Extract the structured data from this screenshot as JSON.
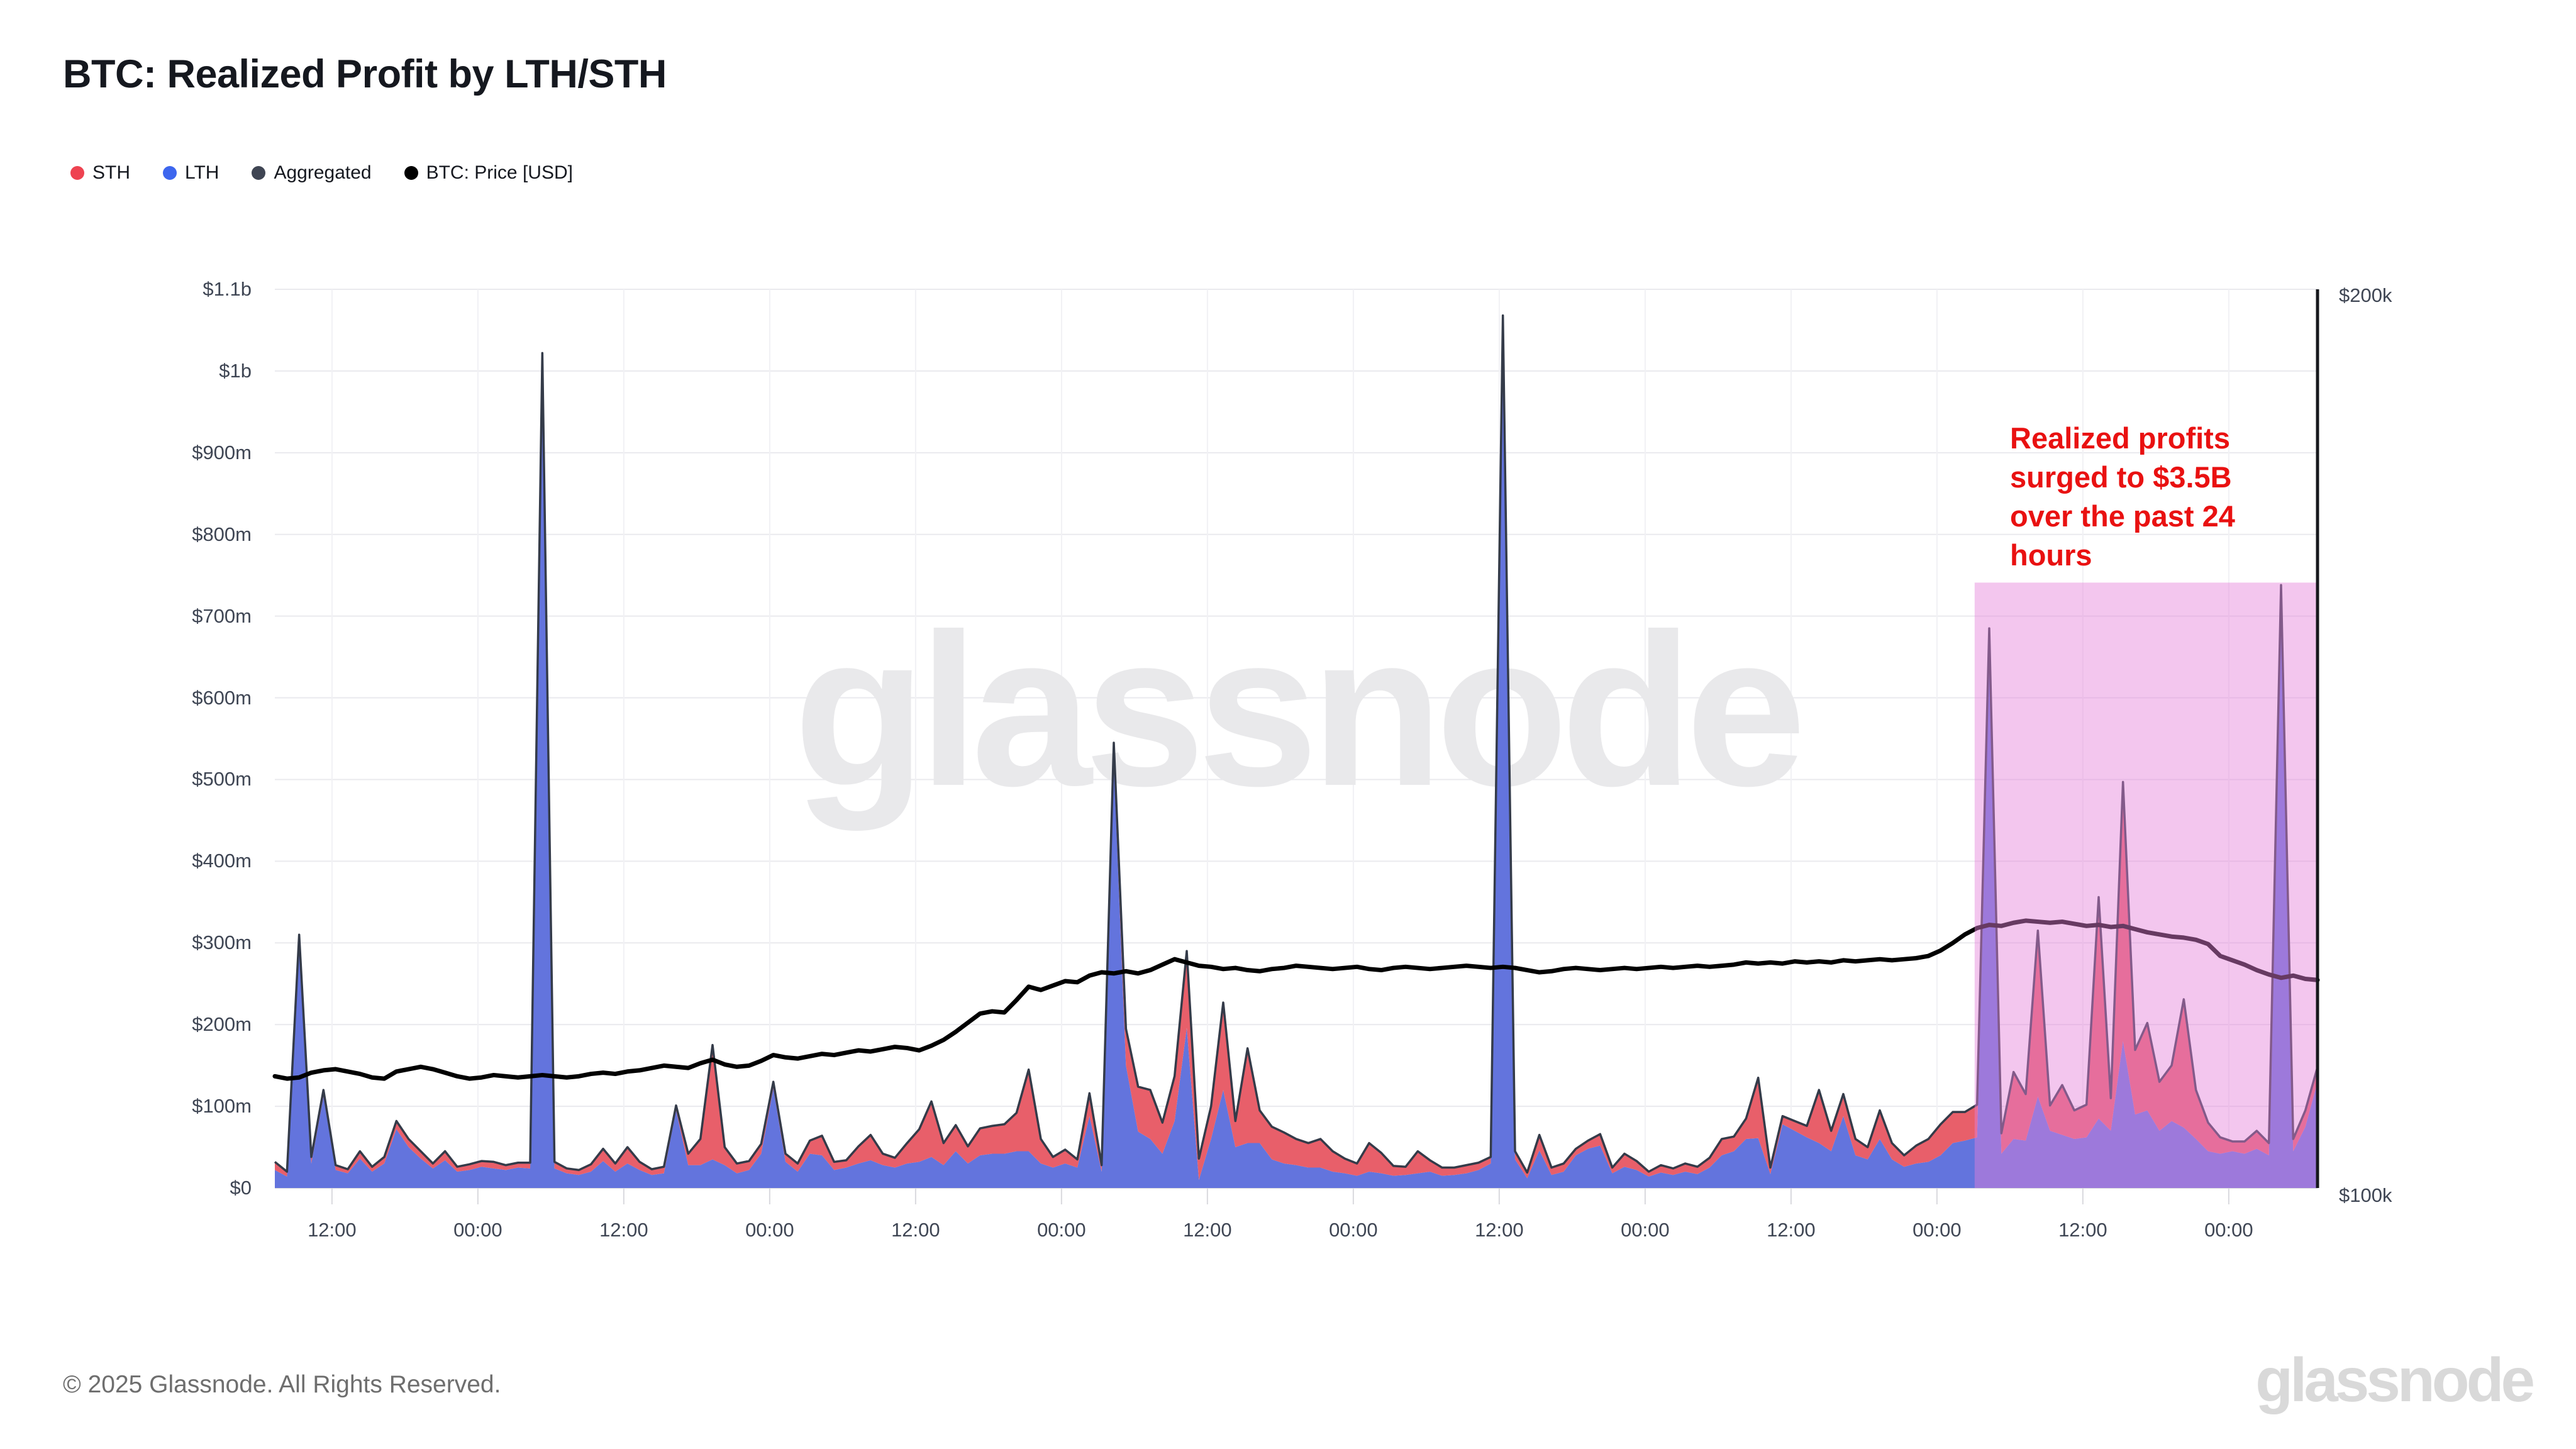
{
  "page": {
    "title": "BTC: Realized Profit by LTH/STH"
  },
  "legend": [
    {
      "label": "STH",
      "color": "#ee4351"
    },
    {
      "label": "LTH",
      "color": "#3d66ee"
    },
    {
      "label": "Aggregated",
      "color": "#3f4553"
    },
    {
      "label": "BTC: Price [USD]",
      "color": "#000000"
    }
  ],
  "annotation": {
    "color": "#e91111",
    "lines": [
      "Realized profits",
      "surged to $3.5B",
      "over the past 24",
      "hours"
    ]
  },
  "watermark": "glassnode",
  "footer": {
    "copyright": "© 2025 Glassnode. All Rights Reserved.",
    "logo": "glassnode"
  },
  "chart_data": {
    "type": "area",
    "stacked": true,
    "title": "BTC: Realized Profit by LTH/STH",
    "x_unit": "hours",
    "x_range_hours": 168,
    "x_tick_hours": [
      4.7,
      16.7,
      28.7,
      40.7,
      52.7,
      64.7,
      76.7,
      88.7,
      100.7,
      112.7,
      124.7,
      136.7,
      148.7,
      160.7
    ],
    "x_tick_labels": [
      "12:00",
      "00:00",
      "12:00",
      "00:00",
      "12:00",
      "00:00",
      "12:00",
      "00:00",
      "12:00",
      "00:00",
      "12:00",
      "00:00",
      "12:00",
      "00:00"
    ],
    "left_axis": {
      "max_m": 1100,
      "tick_values_m": [
        0,
        100,
        200,
        300,
        400,
        500,
        600,
        700,
        800,
        900,
        1000,
        1100
      ],
      "tick_labels": [
        "$0",
        "$100m",
        "$200m",
        "$300m",
        "$400m",
        "$500m",
        "$600m",
        "$700m",
        "$800m",
        "$900m",
        "$1b",
        "$1.1b"
      ]
    },
    "right_axis": {
      "labels": [
        "$200k",
        "$100k"
      ],
      "min_k": 100,
      "max_k": 200,
      "scale": "log"
    },
    "grid": {
      "h_color": "#eaeaee",
      "v_color": "#f1f1f4",
      "baseline_color": "#d7d7db",
      "tick_color": "#d9d9de"
    },
    "highlight": {
      "start_hour": 139.8,
      "end_hour": 168,
      "top_value_m": 741,
      "color": "rgba(229,129,218,0.45)"
    },
    "series": [
      {
        "name": "LTH",
        "color": "#6374dd",
        "values_m": [
          22,
          14,
          300,
          30,
          112,
          22,
          18,
          36,
          20,
          30,
          72,
          50,
          36,
          24,
          34,
          20,
          22,
          26,
          24,
          22,
          25,
          24,
          1010,
          24,
          18,
          16,
          20,
          33,
          20,
          30,
          22,
          16,
          18,
          95,
          28,
          28,
          35,
          28,
          18,
          22,
          42,
          122,
          32,
          20,
          42,
          40,
          22,
          25,
          30,
          34,
          28,
          25,
          30,
          32,
          38,
          28,
          45,
          30,
          40,
          42,
          42,
          45,
          45,
          30,
          25,
          30,
          25,
          88,
          20,
          520,
          150,
          69,
          60,
          42,
          82,
          196,
          10,
          60,
          120,
          50,
          55,
          55,
          35,
          30,
          28,
          25,
          25,
          20,
          18,
          15,
          20,
          18,
          15,
          16,
          18,
          20,
          15,
          16,
          18,
          22,
          30,
          1060,
          35,
          12,
          46,
          16,
          20,
          40,
          48,
          52,
          18,
          26,
          22,
          14,
          19,
          16,
          20,
          17,
          25,
          40,
          45,
          60,
          61,
          17,
          78,
          70,
          62,
          55,
          45,
          88,
          40,
          35,
          60,
          35,
          26,
          30,
          32,
          40,
          55,
          58,
          62,
          640,
          42,
          60,
          58,
          112,
          70,
          65,
          60,
          62,
          85,
          70,
          180,
          90,
          95,
          70,
          82,
          74,
          60,
          45,
          42,
          45,
          42,
          48,
          40,
          730,
          45,
          75,
          130
        ]
      },
      {
        "name": "STH",
        "color": "#e85f6a",
        "values_m": [
          10,
          6,
          10,
          8,
          8,
          6,
          5,
          9,
          6,
          8,
          10,
          10,
          9,
          6,
          11,
          6,
          7,
          7,
          8,
          6,
          6,
          7,
          12,
          8,
          6,
          6,
          9,
          15,
          10,
          20,
          10,
          7,
          8,
          6,
          14,
          32,
          140,
          22,
          12,
          11,
          12,
          8,
          10,
          10,
          16,
          24,
          10,
          9,
          21,
          31,
          14,
          12,
          25,
          40,
          68,
          27,
          32,
          21,
          33,
          34,
          36,
          47,
          100,
          30,
          13,
          17,
          10,
          28,
          8,
          25,
          45,
          55,
          60,
          38,
          55,
          94,
          26,
          40,
          107,
          32,
          116,
          40,
          40,
          38,
          32,
          30,
          35,
          25,
          18,
          15,
          35,
          25,
          12,
          10,
          27,
          14,
          10,
          9,
          10,
          9,
          8,
          8,
          10,
          7,
          19,
          9,
          10,
          8,
          10,
          14,
          7,
          16,
          11,
          6,
          9,
          8,
          10,
          9,
          12,
          20,
          18,
          25,
          74,
          8,
          10,
          12,
          14,
          65,
          25,
          27,
          20,
          15,
          35,
          20,
          14,
          22,
          28,
          38,
          38,
          35,
          40,
          45,
          25,
          82,
          57,
          203,
          31,
          61,
          35,
          40,
          271,
          40,
          317,
          79,
          107,
          60,
          68,
          157,
          60,
          35,
          20,
          12,
          15,
          22,
          15,
          8,
          15,
          20,
          18
        ]
      },
      {
        "name": "Aggregated",
        "color": "#343b49",
        "derived": "LTH + STH outline"
      },
      {
        "name": "BTC: Price [USD]",
        "color": "#000000",
        "axis": "right",
        "values_k": [
          109.0,
          108.8,
          108.9,
          109.3,
          109.5,
          109.6,
          109.4,
          109.2,
          108.9,
          108.8,
          109.4,
          109.6,
          109.8,
          109.6,
          109.3,
          109.0,
          108.8,
          108.9,
          109.1,
          109.0,
          108.9,
          109.0,
          109.1,
          109.0,
          108.9,
          109.0,
          109.2,
          109.3,
          109.2,
          109.4,
          109.5,
          109.7,
          109.9,
          109.8,
          109.7,
          110.1,
          110.4,
          110.0,
          109.8,
          109.9,
          110.3,
          110.8,
          110.6,
          110.5,
          110.7,
          110.9,
          110.8,
          111.0,
          111.2,
          111.1,
          111.3,
          111.5,
          111.4,
          111.2,
          111.6,
          112.1,
          112.8,
          113.6,
          114.4,
          114.6,
          114.5,
          115.6,
          116.8,
          116.5,
          116.9,
          117.3,
          117.2,
          117.8,
          118.1,
          118.0,
          118.2,
          118.0,
          118.3,
          118.8,
          119.3,
          119.0,
          118.7,
          118.6,
          118.4,
          118.5,
          118.3,
          118.2,
          118.4,
          118.5,
          118.7,
          118.6,
          118.5,
          118.4,
          118.5,
          118.6,
          118.4,
          118.3,
          118.5,
          118.6,
          118.5,
          118.4,
          118.5,
          118.6,
          118.7,
          118.6,
          118.5,
          118.6,
          118.5,
          118.3,
          118.1,
          118.2,
          118.4,
          118.5,
          118.4,
          118.3,
          118.4,
          118.5,
          118.4,
          118.5,
          118.6,
          118.5,
          118.6,
          118.7,
          118.6,
          118.7,
          118.8,
          119.0,
          118.9,
          119.0,
          118.9,
          119.1,
          119.0,
          119.1,
          119.0,
          119.2,
          119.1,
          119.2,
          119.3,
          119.2,
          119.3,
          119.4,
          119.6,
          120.1,
          120.8,
          121.6,
          122.2,
          122.5,
          122.4,
          122.7,
          122.9,
          122.8,
          122.7,
          122.8,
          122.6,
          122.4,
          122.5,
          122.3,
          122.4,
          122.1,
          121.8,
          121.6,
          121.4,
          121.3,
          121.1,
          120.7,
          119.6,
          119.2,
          118.8,
          118.3,
          117.9,
          117.6,
          117.8,
          117.5,
          117.4
        ]
      }
    ]
  }
}
